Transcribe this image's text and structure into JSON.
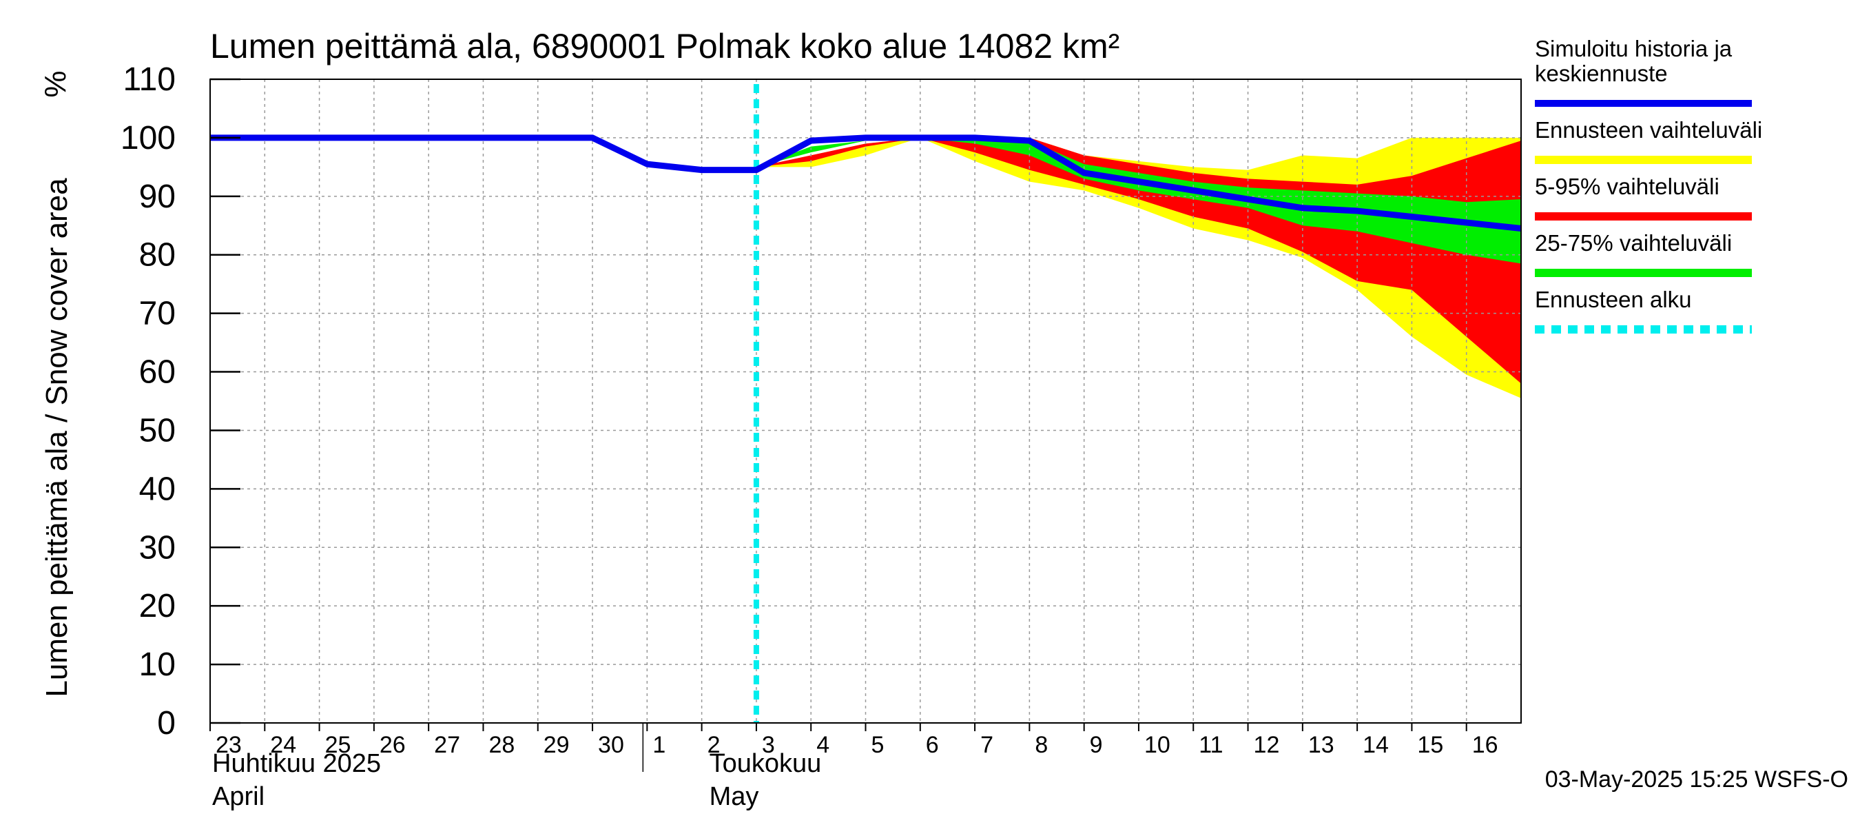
{
  "chart_data": {
    "type": "area",
    "title": "Lumen peittämä ala, 6890001 Polmak koko alue 14082 km²",
    "ylabel": "Lumen peittämä ala / Snow cover area",
    "yunit": "%",
    "ylim": [
      0,
      110
    ],
    "yticks": [
      0,
      10,
      20,
      30,
      40,
      50,
      60,
      70,
      80,
      90,
      100,
      110
    ],
    "x_range_days": [
      0,
      24
    ],
    "x_ticks": [
      {
        "day": 0,
        "label": "23"
      },
      {
        "day": 1,
        "label": "24"
      },
      {
        "day": 2,
        "label": "25"
      },
      {
        "day": 3,
        "label": "26"
      },
      {
        "day": 4,
        "label": "27"
      },
      {
        "day": 5,
        "label": "28"
      },
      {
        "day": 6,
        "label": "29"
      },
      {
        "day": 7,
        "label": "30"
      },
      {
        "day": 8,
        "label": "1"
      },
      {
        "day": 9,
        "label": "2"
      },
      {
        "day": 10,
        "label": "3"
      },
      {
        "day": 11,
        "label": "4"
      },
      {
        "day": 12,
        "label": "5"
      },
      {
        "day": 13,
        "label": "6"
      },
      {
        "day": 14,
        "label": "7"
      },
      {
        "day": 15,
        "label": "8"
      },
      {
        "day": 16,
        "label": "9"
      },
      {
        "day": 17,
        "label": "10"
      },
      {
        "day": 18,
        "label": "11"
      },
      {
        "day": 19,
        "label": "12"
      },
      {
        "day": 20,
        "label": "13"
      },
      {
        "day": 21,
        "label": "14"
      },
      {
        "day": 22,
        "label": "15"
      },
      {
        "day": 23,
        "label": "16"
      }
    ],
    "month_labels": [
      {
        "day": 0,
        "fi": "Huhtikuu  2025",
        "en": "April"
      },
      {
        "day": 9,
        "fi": "Toukokuu",
        "en": "May"
      }
    ],
    "month_separator_day": 8,
    "forecast_start_day": 10,
    "bands_x": [
      10,
      11,
      12,
      13,
      14,
      15,
      16,
      17,
      18,
      19,
      20,
      21,
      22,
      23,
      24
    ],
    "band_range_upper": [
      95,
      97,
      99,
      100,
      100,
      100,
      97,
      96,
      95,
      94.5,
      97,
      96.5,
      100,
      100,
      100
    ],
    "band_range_lower": [
      95,
      95,
      97,
      100,
      96,
      92.5,
      91,
      88,
      84.5,
      82.5,
      79.5,
      74,
      66,
      59.5,
      55.5
    ],
    "band_5_95_upper": [
      95,
      97,
      99,
      100,
      100,
      100,
      97,
      95.5,
      94,
      93,
      92.5,
      92,
      93.5,
      96.5,
      99.5
    ],
    "band_5_95_lower": [
      95,
      96,
      98.5,
      100,
      97.5,
      94.5,
      92,
      89.5,
      86.5,
      84.5,
      80.5,
      75.5,
      74,
      66,
      58
    ],
    "band_25_75_upper": [
      95,
      98.5,
      99.5,
      100,
      100,
      99.5,
      95.5,
      94,
      92.5,
      91.5,
      91,
      90.5,
      90,
      89,
      89.5
    ],
    "band_25_75_lower": [
      95,
      97.5,
      99.5,
      100,
      99,
      97,
      93,
      91,
      89.5,
      88,
      85,
      84,
      82,
      80,
      78.5
    ],
    "series": [
      {
        "name": "Simuloitu historia ja keskiennuste",
        "x": [
          0,
          1,
          2,
          3,
          4,
          5,
          6,
          7,
          8,
          9,
          10,
          11,
          12,
          13,
          14,
          15,
          16,
          17,
          18,
          19,
          20,
          21,
          22,
          23,
          24
        ],
        "values": [
          100,
          100,
          100,
          100,
          100,
          100,
          100,
          100,
          95.5,
          94.5,
          94.5,
          99.5,
          100,
          100,
          100,
          99.5,
          94,
          92.5,
          91,
          89.5,
          88,
          87.5,
          86.5,
          85.5,
          84.5
        ]
      }
    ],
    "legend": [
      {
        "label": "Simuloitu historia ja keskiennuste",
        "lines": [
          "Simuloitu historia ja",
          "keskiennuste"
        ],
        "color": "#0000ee",
        "style": "line"
      },
      {
        "label": "Ennusteen vaihteluväli",
        "lines": [
          "Ennusteen vaihteluväli"
        ],
        "color": "#ffff00",
        "style": "band"
      },
      {
        "label": "5-95% vaihteluväli",
        "lines": [
          "5-95% vaihteluväli"
        ],
        "color": "#ff0000",
        "style": "band"
      },
      {
        "label": "25-75% vaihteluväli",
        "lines": [
          "25-75% vaihteluväli"
        ],
        "color": "#00ee00",
        "style": "band"
      },
      {
        "label": "Ennusteen alku",
        "lines": [
          "Ennusteen alku"
        ],
        "color": "#00eeee",
        "style": "dashed"
      }
    ],
    "legend_position": "right",
    "grid": true,
    "footer": "03-May-2025 15:25 WSFS-O"
  },
  "colors": {
    "median": "#0000ee",
    "range": "#ffff00",
    "band_5_95": "#ff0000",
    "band_25_75": "#00ee00",
    "forecast_start": "#00eeee",
    "grid": "#999999"
  }
}
